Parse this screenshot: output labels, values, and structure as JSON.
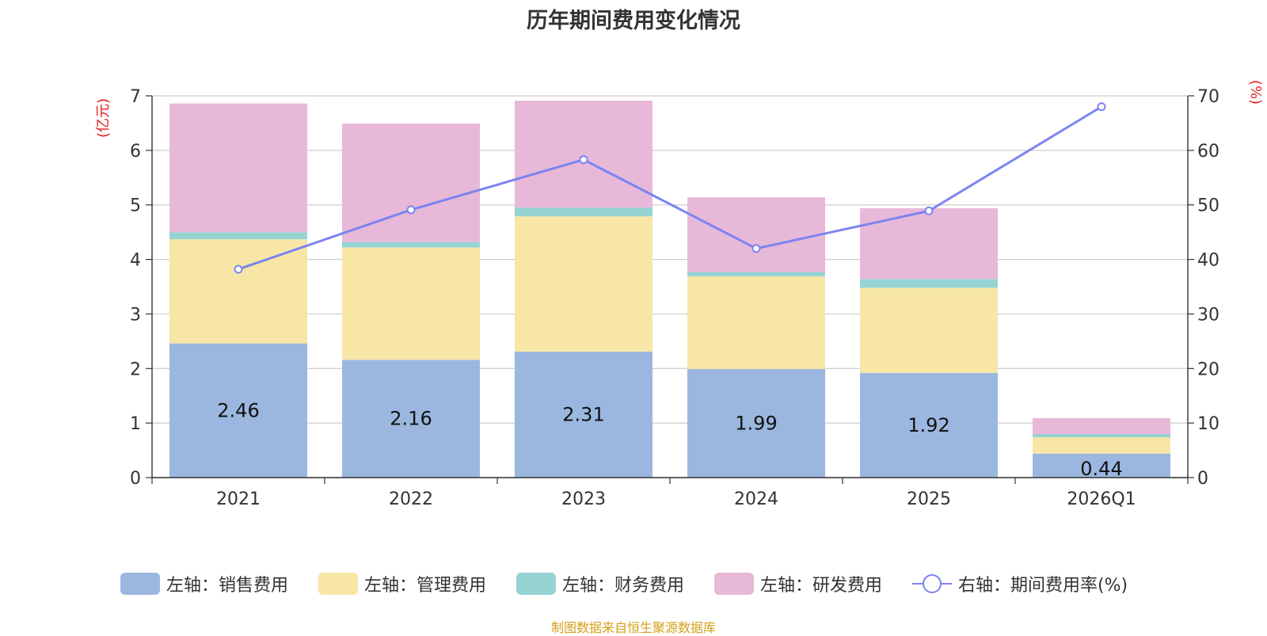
{
  "title": "历年期间费用变化情况",
  "source": "制图数据来自恒生聚源数据库",
  "colors": {
    "sales": "#9bb7e0",
    "admin": "#f7e6a6",
    "finance": "#96d3d3",
    "rd": "#e8b8d9",
    "rate": "#7b84f0",
    "axis_unit": "#e02020",
    "source": "#d4a017"
  },
  "chart_data": {
    "type": "bar",
    "stacked": true,
    "title": "历年期间费用变化情况",
    "categories": [
      "2021",
      "2022",
      "2023",
      "2024",
      "2025",
      "2026Q1"
    ],
    "left_axis": {
      "unit": "(亿元)",
      "min": 0,
      "max": 7,
      "ticks": [
        0,
        1,
        2,
        3,
        4,
        5,
        6,
        7
      ]
    },
    "right_axis": {
      "unit": "(%)",
      "min": 0,
      "max": 70,
      "ticks": [
        0,
        10,
        20,
        30,
        40,
        50,
        60,
        70
      ]
    },
    "series": [
      {
        "name": "左轴：销售费用",
        "axis": "left",
        "type": "bar",
        "values": [
          2.46,
          2.16,
          2.31,
          1.99,
          1.92,
          0.44
        ],
        "show_labels": true
      },
      {
        "name": "左轴：管理费用",
        "axis": "left",
        "type": "bar",
        "values": [
          1.91,
          2.06,
          2.48,
          1.7,
          1.56,
          0.3
        ]
      },
      {
        "name": "左轴：财务费用",
        "axis": "left",
        "type": "bar",
        "values": [
          0.13,
          0.1,
          0.16,
          0.08,
          0.16,
          0.06
        ]
      },
      {
        "name": "左轴：研发费用",
        "axis": "left",
        "type": "bar",
        "values": [
          2.36,
          2.17,
          1.96,
          1.37,
          1.3,
          0.29
        ]
      },
      {
        "name": "右轴：期间费用率(%)",
        "axis": "right",
        "type": "line",
        "values": [
          38.2,
          49.1,
          58.3,
          42.0,
          48.9,
          68.0
        ]
      }
    ],
    "legend_position": "bottom"
  }
}
